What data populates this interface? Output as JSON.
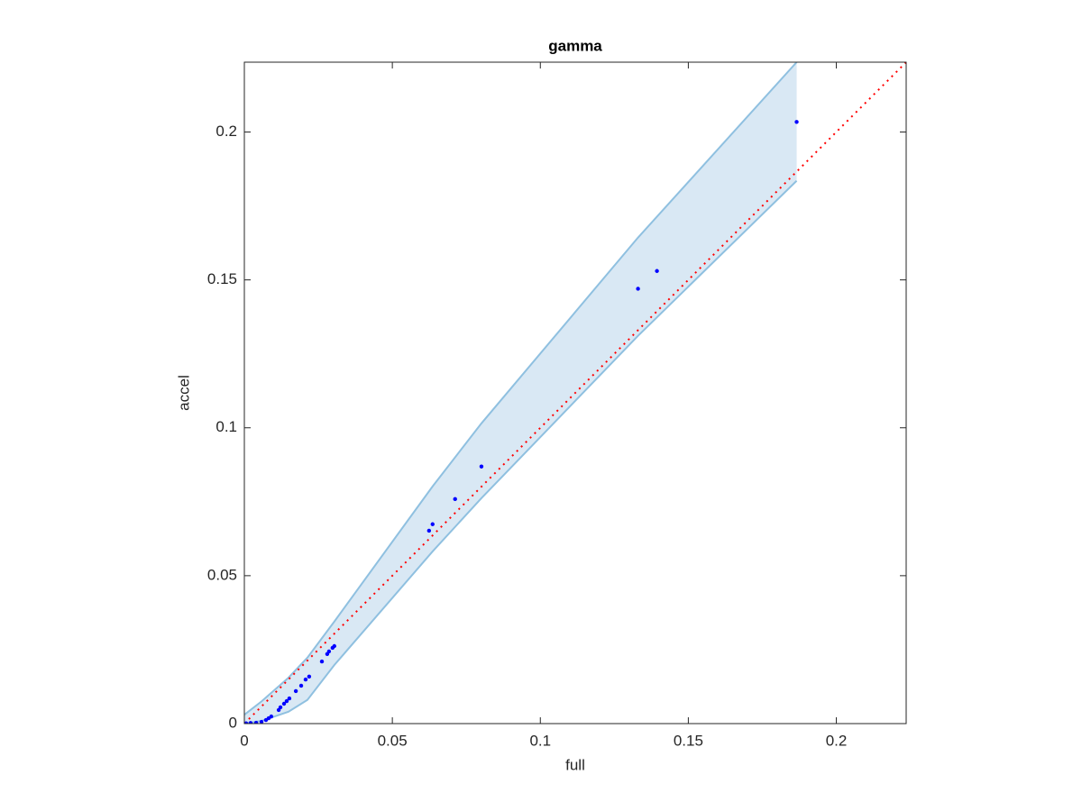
{
  "chart_data": {
    "type": "scatter",
    "title": "gamma",
    "x_label": "full",
    "y_label": "accel",
    "xlim": [
      0,
      0.2236
    ],
    "ylim": [
      0,
      0.2236
    ],
    "xticks": [
      0,
      0.05,
      0.1,
      0.15,
      0.2
    ],
    "yticks": [
      0,
      0.05,
      0.1,
      0.15,
      0.2
    ],
    "box": true,
    "points": {
      "color": "#0000ff",
      "x": [
        0.1866,
        0.1394,
        0.133,
        0.0801,
        0.0712,
        0.0636,
        0.0624,
        0.0304,
        0.0298,
        0.0286,
        0.028,
        0.0262,
        0.0219,
        0.0207,
        0.0192,
        0.0174,
        0.0152,
        0.0143,
        0.0134,
        0.0122,
        0.0116,
        0.0091,
        0.0082,
        0.0073,
        0.0058,
        0.004,
        0.0021,
        0.0006
      ],
      "y": [
        0.2034,
        0.153,
        0.147,
        0.0869,
        0.0759,
        0.0674,
        0.0652,
        0.0262,
        0.0256,
        0.0244,
        0.0235,
        0.021,
        0.0159,
        0.0149,
        0.0128,
        0.011,
        0.0085,
        0.0076,
        0.0067,
        0.0055,
        0.0046,
        0.0024,
        0.0018,
        0.0012,
        0.0006,
        0.0003,
        0.0002,
        0.0001
      ]
    },
    "band": {
      "fill_color": "#d9e8f4",
      "edge_color": "#8fc0e0",
      "x": [
        0,
        0.0058,
        0.0149,
        0.0213,
        0.0304,
        0.0636,
        0.0801,
        0.133,
        0.1866
      ],
      "upper": [
        0.003,
        0.0075,
        0.0155,
        0.0223,
        0.0345,
        0.0802,
        0.1015,
        0.1643,
        0.2236
      ],
      "lower": [
        0,
        0.0009,
        0.004,
        0.008,
        0.0198,
        0.0582,
        0.0762,
        0.1311,
        0.1835
      ]
    },
    "reference_line": {
      "color": "#ff0000",
      "x": [
        0,
        0.2236
      ],
      "y": [
        0,
        0.2236
      ]
    }
  }
}
